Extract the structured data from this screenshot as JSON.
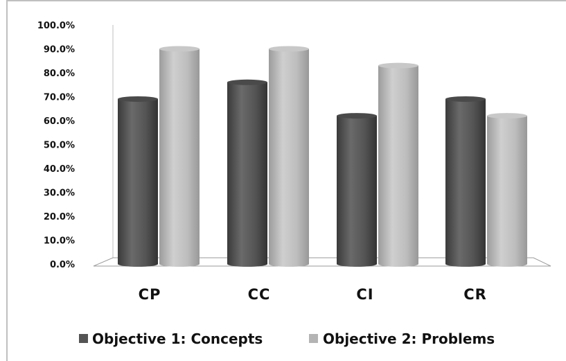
{
  "chart_data": {
    "type": "bar",
    "categories": [
      "CP",
      "CC",
      "CI",
      "CR"
    ],
    "series": [
      {
        "name": "Objective 1: Concepts",
        "values": [
          69,
          76,
          62,
          69
        ],
        "color": "#545454"
      },
      {
        "name": "Objective 2: Problems",
        "values": [
          90,
          90,
          83,
          62
        ],
        "color": "#b4b4b4"
      }
    ],
    "yticks": [
      "0.0%",
      "10.0%",
      "20.0%",
      "30.0%",
      "40.0%",
      "50.0%",
      "60.0%",
      "70.0%",
      "80.0%",
      "90.0%",
      "100.0%"
    ],
    "ylim": [
      0,
      100
    ],
    "legend_position": "bottom",
    "grid": false,
    "three_d": true
  }
}
